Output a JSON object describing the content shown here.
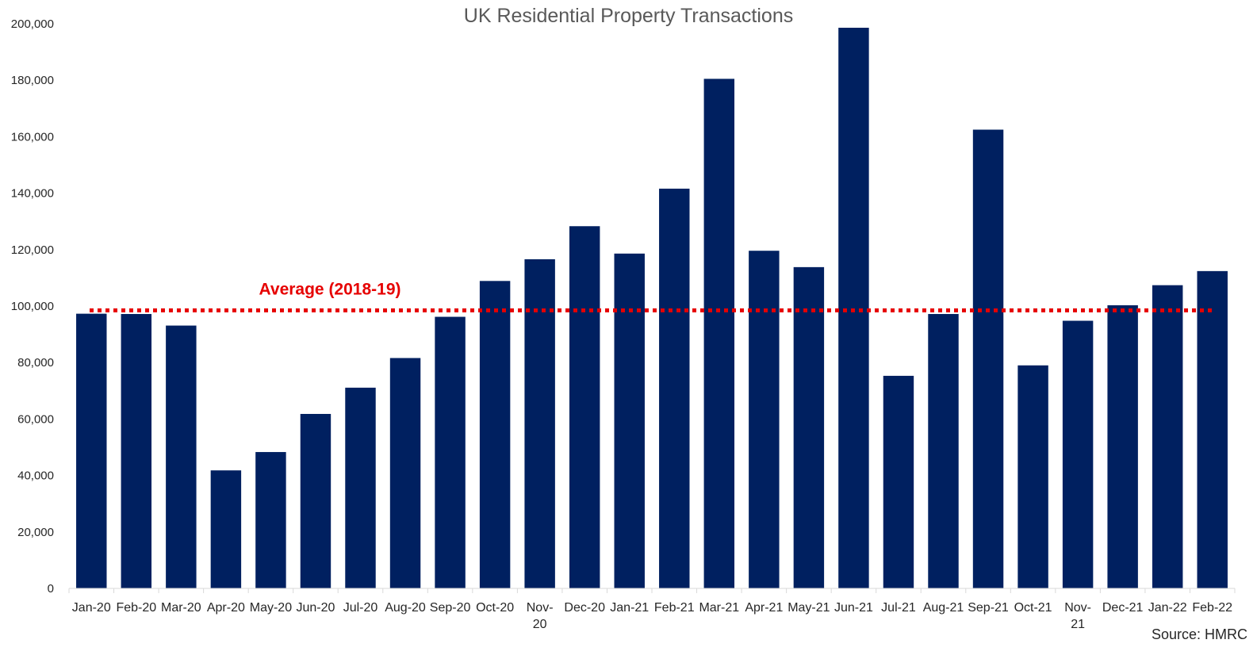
{
  "chart_data": {
    "type": "bar",
    "title": "UK Residential Property Transactions",
    "source": "Source: HMRC",
    "xlabel": "",
    "ylabel": "",
    "ylim": [
      0,
      200000
    ],
    "ytick_values": [
      0,
      20000,
      40000,
      60000,
      80000,
      100000,
      120000,
      140000,
      160000,
      180000,
      200000
    ],
    "ytick_labels": [
      "0",
      "20,000",
      "40,000",
      "60,000",
      "80,000",
      "100,000",
      "120,000",
      "140,000",
      "160,000",
      "180,000",
      "200,000"
    ],
    "categories": [
      "Jan-20",
      "Feb-20",
      "Mar-20",
      "Apr-20",
      "May-20",
      "Jun-20",
      "Jul-20",
      "Aug-20",
      "Sep-20",
      "Oct-20",
      "Nov-20",
      "Dec-20",
      "Jan-21",
      "Feb-21",
      "Mar-21",
      "Apr-21",
      "May-21",
      "Jun-21",
      "Jul-21",
      "Aug-21",
      "Sep-21",
      "Oct-21",
      "Nov-21",
      "Dec-21",
      "Jan-22",
      "Feb-22"
    ],
    "category_display_lines": [
      [
        "Jan-20"
      ],
      [
        "Feb-20"
      ],
      [
        "Mar-20"
      ],
      [
        "Apr-20"
      ],
      [
        "May-20"
      ],
      [
        "Jun-20"
      ],
      [
        "Jul-20"
      ],
      [
        "Aug-20"
      ],
      [
        "Sep-20"
      ],
      [
        "Oct-20"
      ],
      [
        "Nov-",
        "20"
      ],
      [
        "Dec-20"
      ],
      [
        "Jan-21"
      ],
      [
        "Feb-21"
      ],
      [
        "Mar-21"
      ],
      [
        "Apr-21"
      ],
      [
        "May-21"
      ],
      [
        "Jun-21"
      ],
      [
        "Jul-21"
      ],
      [
        "Aug-21"
      ],
      [
        "Sep-21"
      ],
      [
        "Oct-21"
      ],
      [
        "Nov-",
        "21"
      ],
      [
        "Dec-21"
      ],
      [
        "Jan-22"
      ],
      [
        "Feb-22"
      ]
    ],
    "series": [
      {
        "name": "Transactions",
        "color": "#002060",
        "values": [
          97300,
          97200,
          93100,
          41800,
          48300,
          61800,
          71100,
          81600,
          96200,
          108900,
          116600,
          128300,
          118600,
          141600,
          180500,
          119600,
          113800,
          198600,
          75300,
          97200,
          162500,
          79000,
          94800,
          100300,
          107400,
          112400
        ]
      }
    ],
    "reference_line": {
      "label": "Average (2018-19)",
      "value": 98500,
      "color": "#e60000",
      "style": "dotted"
    }
  }
}
